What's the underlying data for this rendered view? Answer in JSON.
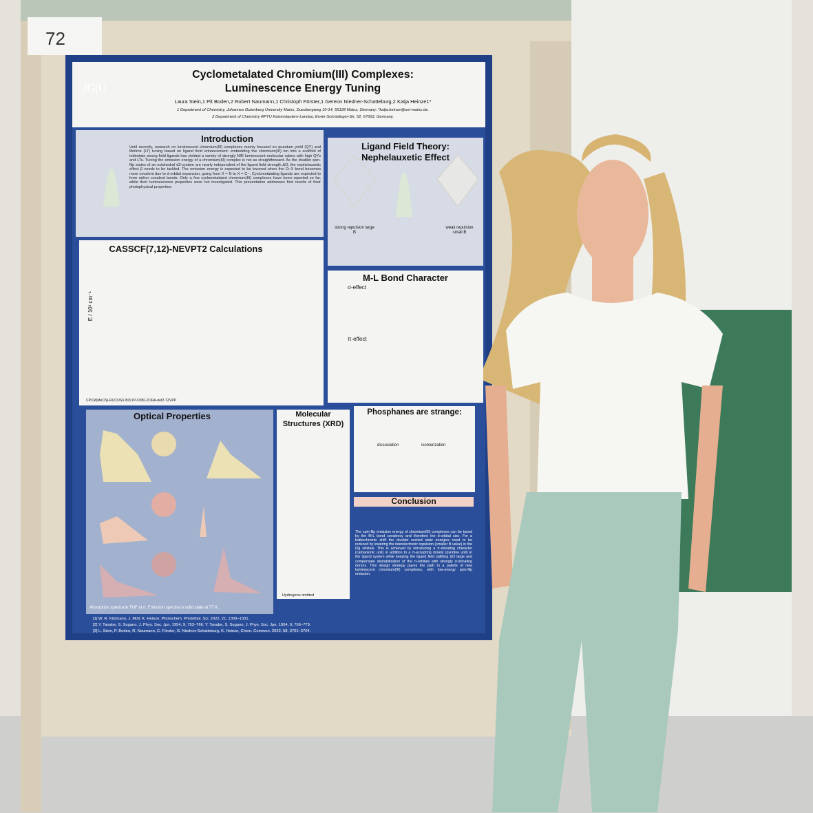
{
  "sign": {
    "number": "72"
  },
  "poster": {
    "title": [
      "Cyclometalated Chromium(III) Complexes:",
      "Luminescence Energy Tuning"
    ],
    "logo": "JG|U",
    "authors": "Laura Stein,1 Pit Boden,2 Robert Naumann,1 Christoph Förster,1 Gereon Niedner-Schatteburg,2 Katja Heinze1*",
    "affiliations": [
      "1 Department of Chemistry, Johannes Gutenberg University Mainz, Duesbergweg 10-14, 55128 Mainz, Germany. *katja.heinze@uni-mainz.de.",
      "2 Department of Chemistry RPTU Kaiserslautern-Landau, Erwin-Schrödinger-Str. 52, 67663, Germany."
    ],
    "sections": {
      "introduction": {
        "heading": "Introduction",
        "text": "Until recently, research on luminescent chromium(III) complexes mainly focused on quantum yield (QY) and lifetime (LT) tuning based on ligand field enhancement: embedding the chromium(III) ion into a scaffold of tridentate strong field ligands has yielded a variety of strongly NIR luminescent molecular rubies with high QYs and LTs. Tuning the emission energy of a chromium(III) complex is not as straightforward. As the doublet spin-flip states of an octahedral d3-system are nearly independent of the ligand field strength ΔO, the nephelauxetic effect β needs to be tackled. The emission energy is expected to be lowered when the Cr-X bond becomes more covalent due to d-orbital expansion, going from X = N to X = C−. Cyclometalating ligands are expected to form rather covalent bonds. Only a few cyclometalated chromium(III) complexes have been reported so far, while their luminescence properties were not investigated. This presentation addresses first results of their photophysical properties."
      },
      "ligand_field": {
        "heading": [
          "Ligand Field Theory:",
          "Nephelauxetic Effect"
        ],
        "left": "strong repulsion large B",
        "right": "weak repulsion small B"
      },
      "casscf": {
        "heading": "CASSCF(7,12)-NEVPT2 Calculations",
        "axis": "E / 10³ cm⁻¹",
        "note": "CPCM(MeCN)-RIJCOSX-B3LYP-D3BJ-ZORA-def2-TZVPP"
      },
      "ml_bond": {
        "heading": "M-L Bond Character",
        "sigma": "σ-effect",
        "pi": "π-effect"
      },
      "optical": {
        "heading": "Optical Properties",
        "caption": "Absorption spectra in THF at rt. Emission spectra in solid state at 77 K."
      },
      "xrd": {
        "heading": [
          "Molecular",
          "Structures (XRD)"
        ],
        "note": "Hydrogens omitted"
      },
      "phosphanes": {
        "heading": "Phosphanes are strange:",
        "steps": [
          "dissociation",
          "isomerization"
        ]
      },
      "conclusion": {
        "heading": "Conclusion",
        "text": "The spin-flip emission energy of chromium(III) complexes can be tuned by the M-L bond covalency and therefore the d-orbital size. For a bathochromic shift the doublet excited state energies need to be reduced by lowering the interelectronic repulsion (smaller B value) in the t2g orbitals. This is achieved by introducing a π-donating character (carbanionic unit) in addition to a π-accepting moiety (pyridine unit) in the ligand system while keeping the ligand field splitting ΔO large and compensate destabilization of the π-orbitals with strongly σ-donating donors. This design strategy paves the path to a palette of new luminescent chromium(III) complexes, with low-energy spin-flip emission."
      }
    },
    "references": [
      "[1] W. R. Kitzmann, J. Moll, K. Heinze, Photochem. Photobiol. Sci. 2022, 21, 1309–1331.",
      "[2] Y. Tanabe, S. Sugano, J. Phys. Soc. Jpn. 1954, 9, 753–766. Y. Tanabe, S. Sugano, J. Phys. Soc. Jpn. 1954, 9, 766–779.",
      "[3] L. Stein, P. Boden, R. Naumann, C. Förster, G. Niedner-Schatteburg, K. Heinze, Chem. Commun. 2022, 58, 3701–3704."
    ]
  }
}
